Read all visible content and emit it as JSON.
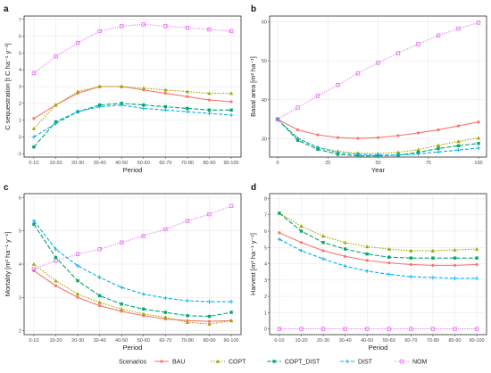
{
  "series_styles": [
    {
      "name": "BAU",
      "color": "#f8766d",
      "dash": "",
      "marker": "dot"
    },
    {
      "name": "COPT",
      "color": "#a3a500",
      "dash": "1.5,1.5",
      "marker": "triangle"
    },
    {
      "name": "COPT_DIST",
      "color": "#00a86b",
      "dash": "5,2",
      "marker": "square"
    },
    {
      "name": "DIST",
      "color": "#00b0f6",
      "dash": "4,2",
      "marker": "plus"
    },
    {
      "name": "NOM",
      "color": "#e76bf3",
      "dash": "1,1.5",
      "marker": "squareOpen"
    }
  ],
  "legend": {
    "title": "Scenarios"
  },
  "chart_data": [
    {
      "panel": "a",
      "type": "line",
      "xlabel": "Period",
      "ylabel": "C sequestration [t C ha⁻¹ y⁻¹]",
      "categories": [
        "0-10",
        "10-20",
        "20-30",
        "30-40",
        "40-50",
        "50-60",
        "60-70",
        "70-80",
        "80-90",
        "90-100"
      ],
      "ylim": [
        -1.2,
        7.2
      ],
      "yticks": [
        -1,
        0,
        1,
        2,
        3,
        4,
        5,
        6,
        7
      ],
      "series": [
        {
          "name": "BAU",
          "values": [
            1.1,
            1.9,
            2.6,
            3.0,
            3.0,
            2.8,
            2.6,
            2.4,
            2.2,
            2.1
          ]
        },
        {
          "name": "COPT",
          "values": [
            0.5,
            1.9,
            2.7,
            3.0,
            3.0,
            2.9,
            2.8,
            2.7,
            2.6,
            2.6
          ]
        },
        {
          "name": "COPT_DIST",
          "values": [
            -0.6,
            0.9,
            1.5,
            1.9,
            2.0,
            1.9,
            1.8,
            1.7,
            1.6,
            1.6
          ]
        },
        {
          "name": "DIST",
          "values": [
            0.0,
            0.8,
            1.5,
            1.8,
            1.9,
            1.7,
            1.6,
            1.5,
            1.4,
            1.3
          ]
        },
        {
          "name": "NOM",
          "values": [
            3.8,
            4.8,
            5.6,
            6.3,
            6.6,
            6.7,
            6.6,
            6.5,
            6.4,
            6.3
          ]
        }
      ]
    },
    {
      "panel": "b",
      "type": "line",
      "xlabel": "Year",
      "ylabel": "Basal area [m² ha⁻¹]",
      "x": [
        0,
        10,
        20,
        30,
        40,
        50,
        60,
        70,
        80,
        90,
        100
      ],
      "xlim": [
        -4,
        104
      ],
      "xticks": [
        0,
        25,
        50,
        75,
        100
      ],
      "ylim": [
        25.3,
        61.5
      ],
      "yticks": [
        30,
        40,
        50,
        60
      ],
      "series": [
        {
          "name": "BAU",
          "values": [
            35,
            32.3,
            31.0,
            30.3,
            30.1,
            30.3,
            30.8,
            31.5,
            32.3,
            33.3,
            34.3
          ]
        },
        {
          "name": "COPT",
          "values": [
            35,
            30.2,
            27.8,
            26.8,
            26.3,
            26.2,
            26.5,
            27.2,
            28.3,
            29.3,
            30.2
          ]
        },
        {
          "name": "COPT_DIST",
          "values": [
            35,
            29.6,
            27.3,
            26.0,
            25.6,
            25.6,
            25.8,
            26.5,
            27.5,
            28.2,
            28.8
          ]
        },
        {
          "name": "DIST",
          "values": [
            35,
            30.0,
            27.8,
            26.4,
            26.0,
            25.8,
            25.8,
            26.1,
            26.6,
            27.1,
            27.6
          ]
        },
        {
          "name": "NOM",
          "values": [
            35,
            38.0,
            41.0,
            43.8,
            46.8,
            49.5,
            52.0,
            54.3,
            56.5,
            58.3,
            59.8
          ]
        }
      ]
    },
    {
      "panel": "c",
      "type": "line",
      "xlabel": "Period",
      "ylabel": "Mortality [m³ ha⁻¹ y⁻¹]",
      "categories": [
        "0-10",
        "10-20",
        "20-30",
        "30-40",
        "40-50",
        "50-60",
        "60-70",
        "70-80",
        "80-90",
        "90-100"
      ],
      "ylim": [
        1.88,
        6.12
      ],
      "yticks": [
        2,
        3,
        4,
        5,
        6
      ],
      "series": [
        {
          "name": "BAU",
          "values": [
            3.8,
            3.35,
            3.0,
            2.75,
            2.58,
            2.45,
            2.35,
            2.3,
            2.28,
            2.3
          ]
        },
        {
          "name": "COPT",
          "values": [
            4.0,
            3.5,
            3.1,
            2.85,
            2.65,
            2.5,
            2.4,
            2.25,
            2.2,
            2.3
          ]
        },
        {
          "name": "COPT_DIST",
          "values": [
            5.2,
            4.2,
            3.5,
            3.05,
            2.8,
            2.65,
            2.55,
            2.45,
            2.43,
            2.55
          ]
        },
        {
          "name": "DIST",
          "values": [
            5.3,
            4.45,
            3.95,
            3.6,
            3.3,
            3.1,
            2.98,
            2.9,
            2.87,
            2.87
          ]
        },
        {
          "name": "NOM",
          "values": [
            3.85,
            4.1,
            4.3,
            4.45,
            4.65,
            4.85,
            5.05,
            5.3,
            5.5,
            5.75
          ]
        }
      ]
    },
    {
      "panel": "d",
      "type": "line",
      "xlabel": "Period",
      "ylabel": "Harvest [m³ ha⁻¹ y⁻¹]",
      "categories": [
        "0-10",
        "10-20",
        "20-30",
        "30-40",
        "40-50",
        "50-60",
        "60-70",
        "70-80",
        "80-90",
        "90-100"
      ],
      "ylim": [
        -0.35,
        8.3
      ],
      "yticks": [
        0,
        1,
        2,
        3,
        4,
        5,
        6,
        7,
        8
      ],
      "series": [
        {
          "name": "BAU",
          "values": [
            5.9,
            5.3,
            4.8,
            4.45,
            4.2,
            4.05,
            3.95,
            3.9,
            3.9,
            3.95
          ]
        },
        {
          "name": "COPT",
          "values": [
            7.1,
            6.3,
            5.7,
            5.3,
            5.05,
            4.9,
            4.8,
            4.8,
            4.85,
            4.9
          ]
        },
        {
          "name": "COPT_DIST",
          "values": [
            7.1,
            6.0,
            5.3,
            4.9,
            4.6,
            4.4,
            4.35,
            4.35,
            4.35,
            4.35
          ]
        },
        {
          "name": "DIST",
          "values": [
            5.5,
            4.8,
            4.3,
            3.85,
            3.55,
            3.35,
            3.2,
            3.15,
            3.1,
            3.1
          ]
        },
        {
          "name": "NOM",
          "values": [
            0,
            0,
            0,
            0,
            0,
            0,
            0,
            0,
            0,
            0
          ]
        }
      ]
    }
  ]
}
